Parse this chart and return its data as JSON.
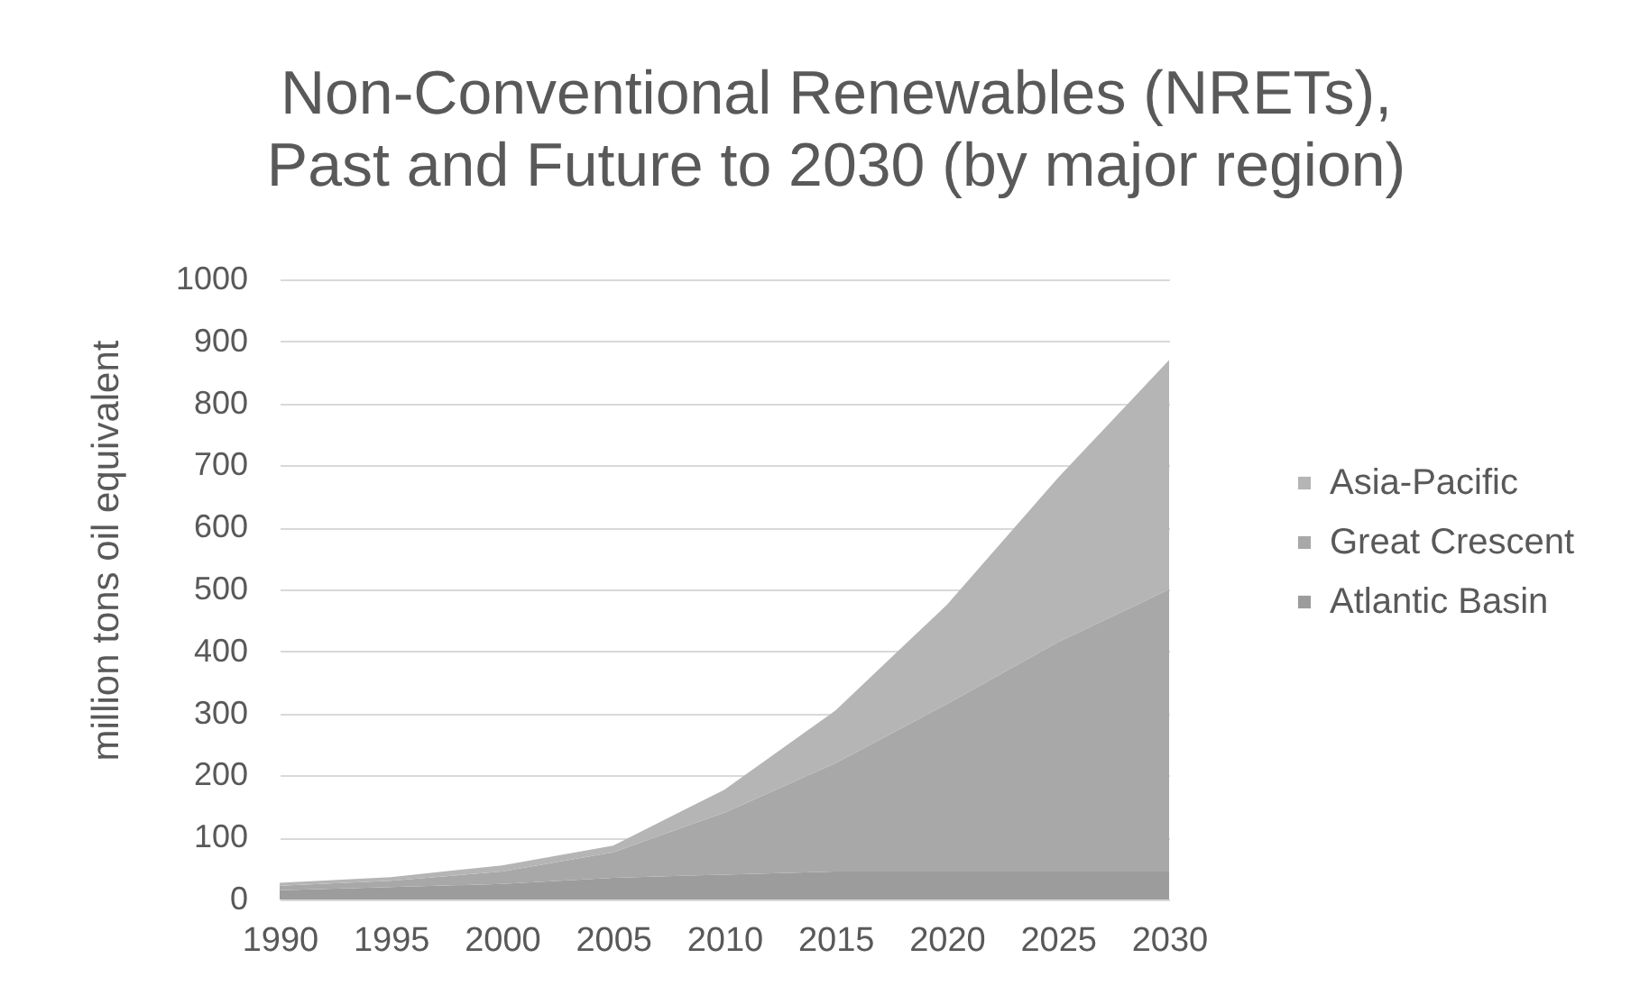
{
  "chart_data": {
    "type": "area",
    "title": "Non-Conventional Renewables (NRETs), Past and Future to 2030 (by major region)",
    "ylabel": "million tons oil equivalent",
    "x": [
      1990,
      1995,
      2000,
      2005,
      2010,
      2015,
      2020,
      2025,
      2030
    ],
    "xlim": [
      1990,
      2030
    ],
    "xticks": [
      1990,
      1995,
      2000,
      2005,
      2010,
      2015,
      2020,
      2025,
      2030
    ],
    "ylim": [
      0,
      1000
    ],
    "yticks": [
      0,
      100,
      200,
      300,
      400,
      500,
      600,
      700,
      800,
      900,
      1000
    ],
    "grid": "y",
    "legend": "right",
    "stacked": true,
    "series": [
      {
        "name": "Atlantic Basin",
        "color": "#9c9c9c",
        "values": [
          15,
          20,
          25,
          35,
          40,
          45,
          45,
          45,
          45
        ]
      },
      {
        "name": "Great Crescent",
        "color": "#a8a8a8",
        "values": [
          7,
          10,
          20,
          41,
          100,
          175,
          270,
          370,
          455
        ]
      },
      {
        "name": "Asia-Pacific",
        "color": "#b5b5b5",
        "values": [
          5,
          6,
          10,
          11,
          37,
          85,
          160,
          265,
          370
        ]
      }
    ]
  }
}
